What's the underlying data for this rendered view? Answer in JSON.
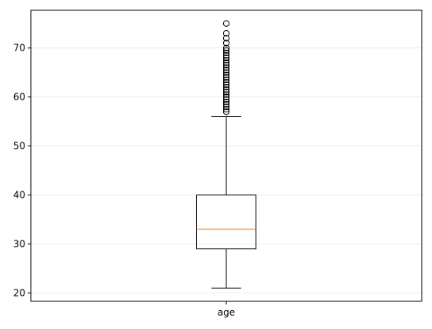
{
  "chart_data": {
    "type": "boxplot",
    "title": "",
    "xlabel": "",
    "ylabel": "",
    "categories": [
      "age"
    ],
    "ylim": [
      18.3,
      77.7
    ],
    "yticks": [
      20,
      30,
      40,
      50,
      60,
      70
    ],
    "ytick_labels": [
      "20",
      "30",
      "40",
      "50",
      "60",
      "70"
    ],
    "grid": "y",
    "box": {
      "whisker_low": 21,
      "q1": 29,
      "median": 33,
      "q3": 40,
      "whisker_high": 56,
      "outliers": [
        57,
        57.5,
        58,
        58.5,
        59,
        59.5,
        60,
        60.5,
        61,
        61.5,
        62,
        62.5,
        63,
        63.5,
        64,
        64.5,
        65,
        65.5,
        66,
        66.5,
        67,
        67.5,
        68,
        68.5,
        69,
        69.5,
        70,
        71,
        72,
        73,
        75
      ]
    },
    "colors": {
      "box": "#000000",
      "median": "#ff7f0e",
      "grid": "#e6e6e6",
      "outlier": "#000000"
    }
  }
}
